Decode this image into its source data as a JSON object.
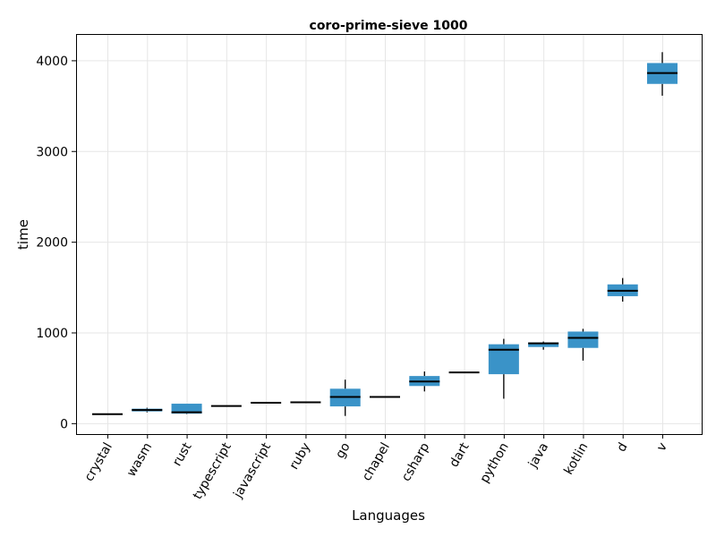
{
  "chart_data": {
    "type": "box",
    "title": "coro-prime-sieve 1000",
    "xlabel": "Languages",
    "ylabel": "time",
    "ylim": [
      -120,
      4290
    ],
    "yticks": [
      0,
      1000,
      2000,
      3000,
      4000
    ],
    "grid": true,
    "box_color": "#3a93c8",
    "categories": [
      "crystal",
      "wasm",
      "rust",
      "typescript",
      "javascript",
      "ruby",
      "go",
      "chapel",
      "csharp",
      "dart",
      "python",
      "java",
      "kotlin",
      "d",
      "v"
    ],
    "series": [
      {
        "category": "crystal",
        "min": 100,
        "q1": 100,
        "median": 100,
        "q3": 100,
        "max": 100
      },
      {
        "category": "wasm",
        "min": 120,
        "q1": 130,
        "median": 145,
        "q3": 160,
        "max": 170
      },
      {
        "category": "rust",
        "min": 100,
        "q1": 105,
        "median": 120,
        "q3": 215,
        "max": 215
      },
      {
        "category": "typescript",
        "min": 190,
        "q1": 190,
        "median": 190,
        "q3": 190,
        "max": 190
      },
      {
        "category": "javascript",
        "min": 225,
        "q1": 225,
        "median": 225,
        "q3": 225,
        "max": 225
      },
      {
        "category": "ruby",
        "min": 230,
        "q1": 230,
        "median": 230,
        "q3": 230,
        "max": 230
      },
      {
        "category": "go",
        "min": 80,
        "q1": 185,
        "median": 290,
        "q3": 380,
        "max": 480
      },
      {
        "category": "chapel",
        "min": 290,
        "q1": 290,
        "median": 290,
        "q3": 290,
        "max": 290
      },
      {
        "category": "csharp",
        "min": 350,
        "q1": 410,
        "median": 460,
        "q3": 520,
        "max": 570
      },
      {
        "category": "dart",
        "min": 560,
        "q1": 560,
        "median": 560,
        "q3": 560,
        "max": 560
      },
      {
        "category": "python",
        "min": 270,
        "q1": 540,
        "median": 810,
        "q3": 870,
        "max": 930
      },
      {
        "category": "java",
        "min": 810,
        "q1": 840,
        "median": 880,
        "q3": 890,
        "max": 900
      },
      {
        "category": "kotlin",
        "min": 690,
        "q1": 830,
        "median": 940,
        "q3": 1010,
        "max": 1040
      },
      {
        "category": "d",
        "min": 1340,
        "q1": 1400,
        "median": 1460,
        "q3": 1530,
        "max": 1600
      },
      {
        "category": "v",
        "min": 3610,
        "q1": 3740,
        "median": 3860,
        "q3": 3970,
        "max": 4090
      }
    ]
  }
}
